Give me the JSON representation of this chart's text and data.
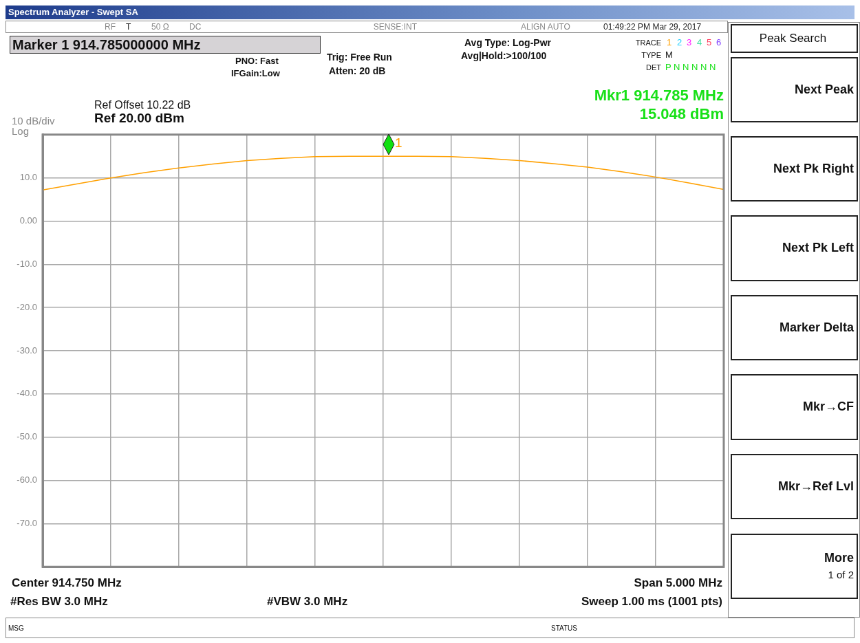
{
  "chart_data": {
    "type": "line",
    "title": "Spectrum Analyzer - Swept SA",
    "categories": [
      null,
      null,
      null,
      null,
      null,
      null,
      null,
      null,
      null,
      null,
      null,
      null,
      null,
      null,
      null,
      null,
      null,
      null,
      null,
      null,
      null
    ],
    "series": [
      {
        "color": "#ffa000",
        "values": [
          7.2,
          8.6,
          10.0,
          11.2,
          12.3,
          13.2,
          14.0,
          14.5,
          14.9,
          15.0,
          15.0,
          15.0,
          14.9,
          14.5,
          14.0,
          13.3,
          12.5,
          11.4,
          10.2,
          8.8,
          7.3
        ]
      }
    ],
    "ylim": [
      -80,
      20
    ],
    "yticks": [
      {
        "value": 20,
        "label": null
      },
      {
        "value": 10,
        "label": "10.0"
      },
      {
        "value": 0,
        "label": "0.00"
      },
      {
        "value": -10,
        "label": "-10.0"
      },
      {
        "value": -20,
        "label": "-20.0"
      },
      {
        "value": -30,
        "label": "-30.0"
      },
      {
        "value": -40,
        "label": "-40.0"
      },
      {
        "value": -50,
        "label": "-50.0"
      },
      {
        "value": -60,
        "label": "-60.0"
      },
      {
        "value": -70,
        "label": "-70.0"
      },
      {
        "value": -80,
        "label": null
      }
    ],
    "tick_labels": "y",
    "grid": true,
    "annotations": [
      "T",
      "RF",
      "50 Ω",
      "DC",
      "SENSE:INT",
      "ALIGN AUTO",
      "01:49:22 PM Mar 29, 2017",
      "Marker 1 914.785000000 MHz",
      "PNO: Fast",
      "IFGain:Low",
      "Trig: Free Run",
      "Atten: 20 dB",
      "Avg Type: Log-Pwr",
      "Avg|Hold:>100/100",
      "TRACE",
      "TYPE",
      "DET",
      "1",
      "2",
      "3",
      "4",
      "5",
      "6",
      "M",
      "P N N N N N",
      "Mkr1 914.785 MHz",
      "15.048 dBm",
      "Ref Offset 10.22 dB",
      "Ref 20.00 dBm",
      "10 dB/div",
      "Log",
      "Center 914.750 MHz",
      "Span 5.000 MHz",
      "#Res BW 3.0 MHz",
      "#VBW 3.0 MHz",
      "Sweep  1.00 ms (1001 pts)",
      "MSG",
      "STATUS",
      "Peak Search",
      "Next Peak",
      "Next Pk Right",
      "Next Pk Left",
      "Marker Delta",
      "Mkr→CF",
      "Mkr→Ref Lvl",
      "More",
      "1 of 2",
      "1"
    ]
  }
}
